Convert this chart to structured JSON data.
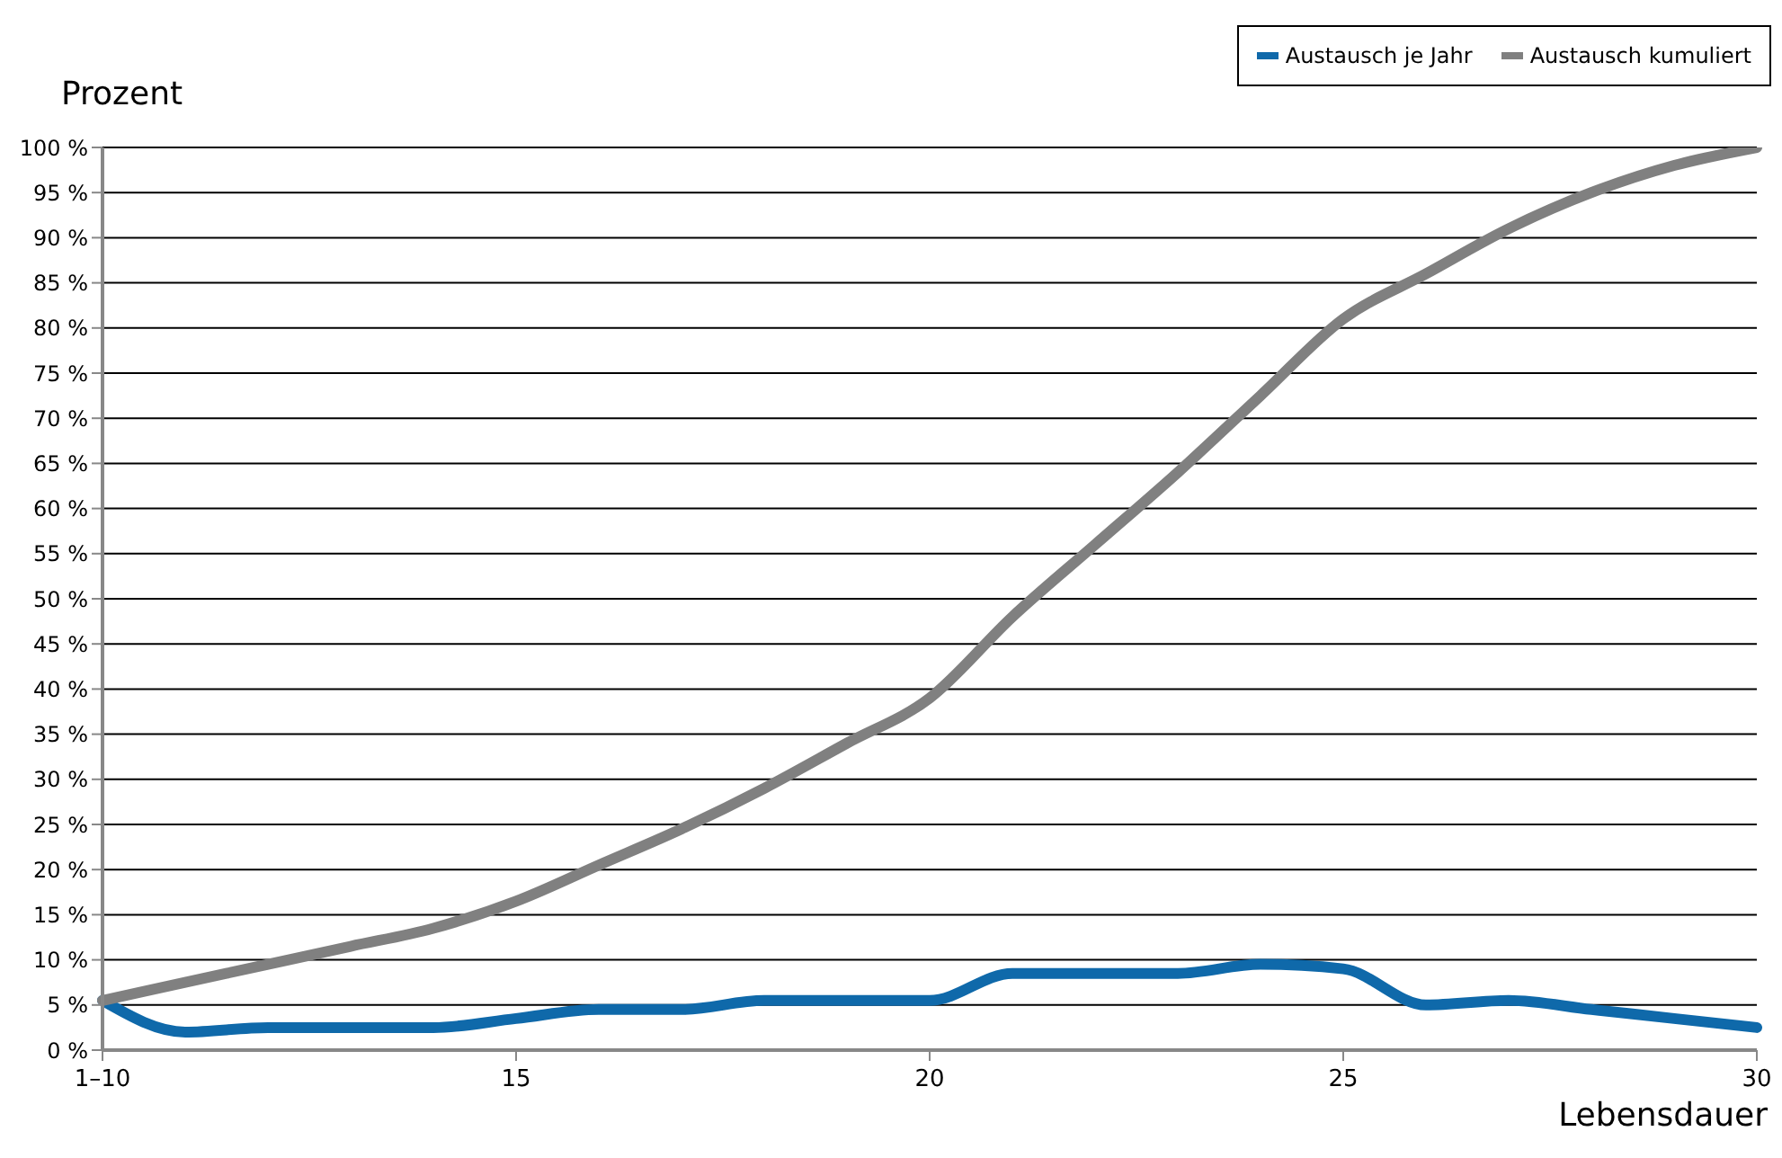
{
  "chart_data": {
    "type": "line",
    "ylabel": "Prozent",
    "xlabel": "Lebensdauer",
    "categories": [
      "1–10",
      null,
      null,
      null,
      null,
      "15",
      null,
      null,
      null,
      null,
      "20",
      null,
      null,
      null,
      null,
      "25",
      null,
      null,
      null,
      null,
      "30"
    ],
    "series": [
      {
        "name": "Austausch je Jahr",
        "color": "#0f69aa",
        "values": [
          5.5,
          2,
          2.5,
          2.5,
          2.5,
          3.5,
          4.5,
          4.5,
          5.5,
          5.5,
          5.5,
          8.5,
          8.5,
          8.5,
          9.5,
          9,
          5,
          5.5,
          4.5,
          3.5,
          2.5
        ]
      },
      {
        "name": "Austausch kumuliert",
        "color": "#808080",
        "values": [
          5.5,
          7.5,
          9.5,
          11.5,
          13.5,
          16.5,
          20.5,
          24.5,
          29,
          34,
          39,
          48,
          56,
          64,
          72.5,
          81,
          86,
          91,
          95,
          98,
          100
        ]
      }
    ],
    "ylim": [
      0,
      100
    ],
    "yticks": [
      {
        "value": 0,
        "label": "0 %"
      },
      {
        "value": 5,
        "label": "5 %"
      },
      {
        "value": 10,
        "label": "10 %"
      },
      {
        "value": 15,
        "label": "15 %"
      },
      {
        "value": 20,
        "label": "20 %"
      },
      {
        "value": 25,
        "label": "25 %"
      },
      {
        "value": 30,
        "label": "30 %"
      },
      {
        "value": 35,
        "label": "35 %"
      },
      {
        "value": 40,
        "label": "40 %"
      },
      {
        "value": 45,
        "label": "45 %"
      },
      {
        "value": 50,
        "label": "50 %"
      },
      {
        "value": 55,
        "label": "55 %"
      },
      {
        "value": 60,
        "label": "60 %"
      },
      {
        "value": 65,
        "label": "65 %"
      },
      {
        "value": 70,
        "label": "70 %"
      },
      {
        "value": 75,
        "label": "75 %"
      },
      {
        "value": 80,
        "label": "80 %"
      },
      {
        "value": 85,
        "label": "85 %"
      },
      {
        "value": 90,
        "label": "90 %"
      },
      {
        "value": 95,
        "label": "95 %"
      },
      {
        "value": 100,
        "label": "100 %"
      }
    ],
    "grid": "y",
    "legend": "top right",
    "marker": "none",
    "line_style": "solid"
  }
}
